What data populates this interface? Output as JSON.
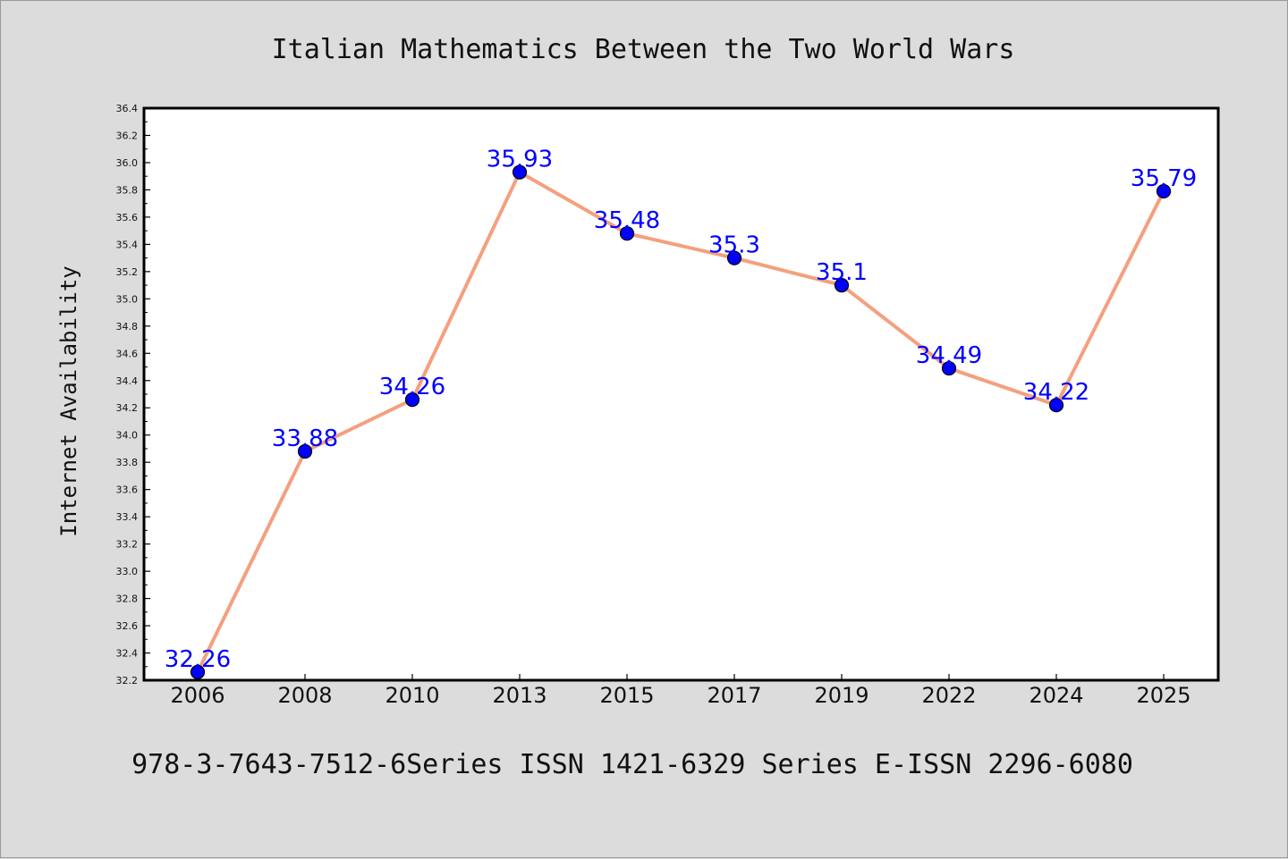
{
  "footer": {
    "text": "978-3-7643-7512-6Series ISSN 1421-6329 Series E-ISSN 2296-6080"
  },
  "colors": {
    "background": "#dcdcdc",
    "plot_background": "#ffffff",
    "line": "#f4a07e",
    "marker": "#0000ff",
    "label": "#0000ff"
  },
  "chart_data": {
    "type": "line",
    "title": "Italian Mathematics Between the Two World Wars",
    "xlabel": "",
    "ylabel": "Internet Availability",
    "categories": [
      "2006",
      "2008",
      "2010",
      "2013",
      "2015",
      "2017",
      "2019",
      "2022",
      "2024",
      "2025"
    ],
    "series": [
      {
        "values": [
          32.26,
          33.88,
          34.26,
          35.93,
          35.48,
          35.3,
          35.1,
          34.49,
          34.22,
          35.79
        ],
        "labels": [
          "32.26",
          "33.88",
          "34.26",
          "35.93",
          "35.48",
          "35.3",
          "35.1",
          "34.49",
          "34.22",
          "35.79"
        ]
      }
    ],
    "ylim": [
      32.2,
      36.4
    ],
    "yticks": [
      "32.2",
      "32.4",
      "32.6",
      "32.8",
      "33.0",
      "33.2",
      "33.4",
      "33.6",
      "33.8",
      "34.0",
      "34.2",
      "34.4",
      "34.6",
      "34.8",
      "35.0",
      "35.2",
      "35.4",
      "35.6",
      "35.8",
      "36.0",
      "36.2",
      "36.4"
    ],
    "grid": false,
    "legend": "none"
  }
}
